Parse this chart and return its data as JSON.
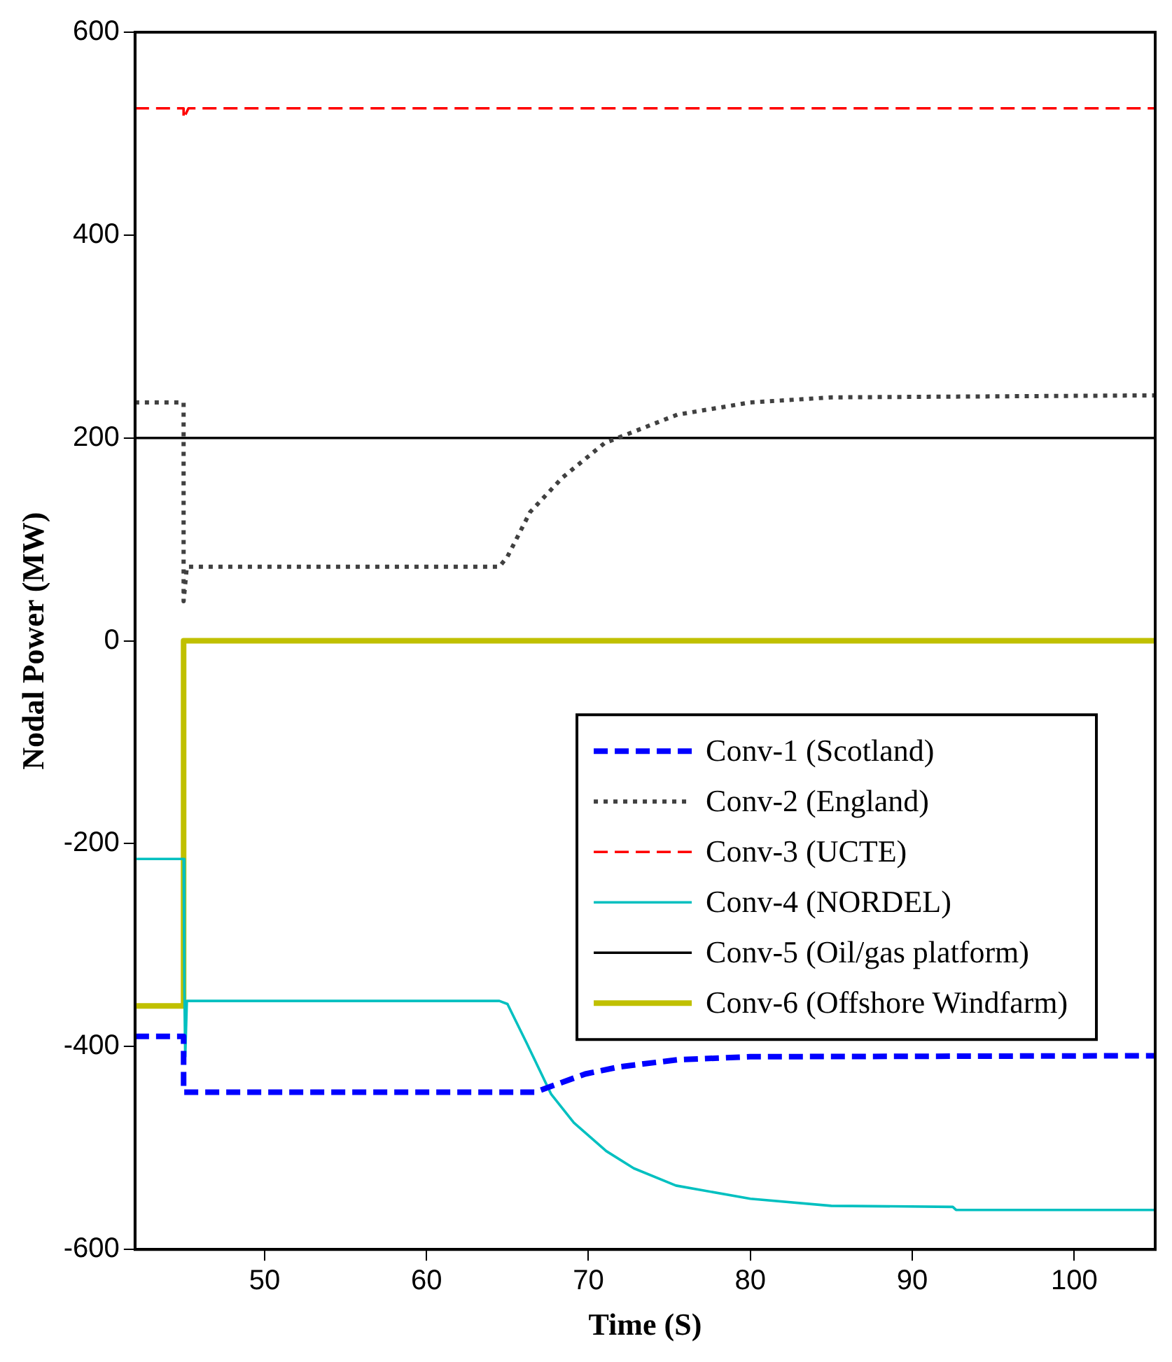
{
  "chart_data": {
    "type": "line",
    "xlabel": "Time (S)",
    "ylabel": "Nodal Power (MW)",
    "xlim": [
      42,
      105
    ],
    "xticks": [
      50,
      60,
      70,
      80,
      90,
      100
    ],
    "ylim": [
      -600,
      600
    ],
    "yticks": [
      -600,
      -400,
      -200,
      0,
      200,
      400,
      600
    ],
    "grid": false,
    "legend": "bottom right",
    "marker": "none",
    "series": [
      {
        "name": "Conv-1 (Scotland)",
        "color": "#0000ff",
        "line_style": "dashed",
        "x": [
          42,
          45,
          45,
          66.7,
          67.9,
          69.8,
          71.9,
          75.5,
          80,
          105
        ],
        "values": [
          -390,
          -390,
          -445,
          -445,
          -438,
          -427,
          -420,
          -413,
          -410,
          -409
        ]
      },
      {
        "name": "Conv-2 (England)",
        "color": "#404040",
        "line_style": "dotted",
        "x": [
          42,
          45,
          45,
          45.2,
          64.5,
          65,
          66.4,
          68.4,
          71,
          75.5,
          80,
          85,
          105
        ],
        "values": [
          235,
          235,
          39,
          73,
          73,
          83,
          127,
          161,
          195,
          223,
          235,
          240,
          242
        ]
      },
      {
        "name": "Conv-3 (UCTE)",
        "color": "#ff0000",
        "line_style": "dashed",
        "x": [
          42,
          45,
          45,
          45.3,
          105
        ],
        "values": [
          525,
          525,
          515,
          525,
          525
        ]
      },
      {
        "name": "Conv-4 (NORDEL)",
        "color": "#00c0c0",
        "line_style": "solid",
        "x": [
          42,
          45,
          45.05,
          45.1,
          45.2,
          64.5,
          65,
          66.2,
          67.7,
          69.1,
          71.1,
          72.8,
          75.4,
          80,
          85,
          92.5,
          92.7,
          105
        ],
        "values": [
          -215,
          -215,
          -343,
          -410,
          -355,
          -355,
          -358,
          -397,
          -447,
          -475,
          -503,
          -520,
          -537,
          -550,
          -557,
          -558,
          -561,
          -561
        ]
      },
      {
        "name": "Conv-5 (Oil/gas platform)",
        "color": "#000000",
        "line_style": "solid",
        "x": [
          42,
          105
        ],
        "values": [
          200,
          200
        ]
      },
      {
        "name": "Conv-6 (Offshore Windfarm)",
        "color": "#c0c000",
        "line_style": "solid",
        "x": [
          42,
          45,
          45,
          105
        ],
        "values": [
          -360,
          -360,
          0,
          0
        ]
      }
    ]
  }
}
